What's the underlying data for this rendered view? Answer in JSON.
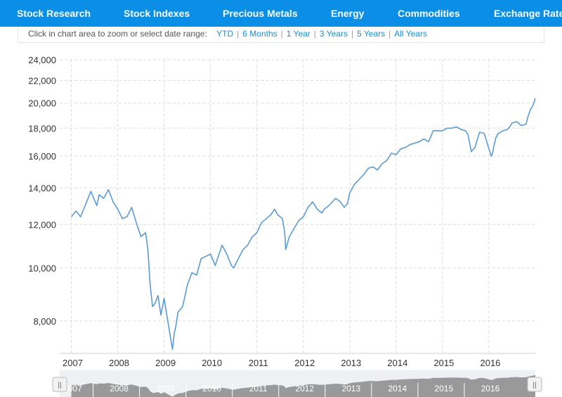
{
  "nav": {
    "items": [
      {
        "label": "Stock Research"
      },
      {
        "label": "Stock Indexes"
      },
      {
        "label": "Precious Metals"
      },
      {
        "label": "Energy"
      },
      {
        "label": "Commodities"
      },
      {
        "label": "Exchange Rates"
      }
    ]
  },
  "range_selector": {
    "prompt": "Click in chart area to zoom or select date range:",
    "options": [
      "YTD",
      "6 Months",
      "1 Year",
      "3 Years",
      "5 Years",
      "All Years"
    ]
  },
  "colors": {
    "nav_background": "#0a8ee6",
    "line": "#5b9bd5",
    "link": "#1a8fd8",
    "navigator_fill": "#999999"
  },
  "chart_data": {
    "type": "line",
    "scale": "log",
    "ylim": [
      7000,
      24000
    ],
    "yticks": [
      8000,
      10000,
      12000,
      14000,
      16000,
      18000,
      20000,
      22000,
      24000
    ],
    "ytick_labels": [
      "8,000",
      "10,000",
      "12,000",
      "14,000",
      "16,000",
      "18,000",
      "20,000",
      "22,000",
      "24,000"
    ],
    "xlim": [
      2006.75,
      2017.0
    ],
    "xticks": [
      2007,
      2008,
      2009,
      2010,
      2011,
      2012,
      2013,
      2014,
      2015,
      2016
    ],
    "xtick_labels": [
      "2007",
      "2008",
      "2009",
      "2010",
      "2011",
      "2012",
      "2013",
      "2014",
      "2015",
      "2016"
    ],
    "grid": true,
    "series": [
      {
        "x": [
          2007.0,
          2007.1,
          2007.2,
          2007.3,
          2007.42,
          2007.5,
          2007.55,
          2007.6,
          2007.7,
          2007.8,
          2007.9,
          2008.0,
          2008.1,
          2008.2,
          2008.3,
          2008.4,
          2008.5,
          2008.6,
          2008.65,
          2008.7,
          2008.75,
          2008.8,
          2008.87,
          2008.93,
          2009.0,
          2009.1,
          2009.18,
          2009.22,
          2009.25,
          2009.3,
          2009.4,
          2009.5,
          2009.6,
          2009.7,
          2009.8,
          2009.9,
          2010.0,
          2010.1,
          2010.25,
          2010.35,
          2010.45,
          2010.5,
          2010.6,
          2010.7,
          2010.8,
          2010.9,
          2011.0,
          2011.1,
          2011.2,
          2011.3,
          2011.38,
          2011.45,
          2011.55,
          2011.6,
          2011.62,
          2011.7,
          2011.8,
          2011.9,
          2012.0,
          2012.1,
          2012.2,
          2012.3,
          2012.4,
          2012.45,
          2012.55,
          2012.7,
          2012.8,
          2012.88,
          2012.95,
          2013.0,
          2013.1,
          2013.2,
          2013.3,
          2013.4,
          2013.5,
          2013.6,
          2013.7,
          2013.8,
          2013.9,
          2014.0,
          2014.1,
          2014.2,
          2014.3,
          2014.4,
          2014.5,
          2014.6,
          2014.7,
          2014.8,
          2014.9,
          2015.0,
          2015.1,
          2015.2,
          2015.3,
          2015.4,
          2015.5,
          2015.55,
          2015.62,
          2015.7,
          2015.8,
          2015.9,
          2016.0,
          2016.05,
          2016.08,
          2016.1,
          2016.15,
          2016.2,
          2016.3,
          2016.4,
          2016.45,
          2016.5,
          2016.6,
          2016.7,
          2016.8,
          2016.85,
          2016.9,
          2016.95,
          2017.0
        ],
        "y": [
          12400,
          12700,
          12400,
          13000,
          13800,
          13300,
          13000,
          13600,
          13400,
          13900,
          13200,
          12800,
          12300,
          12400,
          12900,
          12100,
          11400,
          11600,
          10800,
          9300,
          8500,
          8600,
          8900,
          8200,
          8800,
          7800,
          7100,
          7600,
          7800,
          8300,
          8500,
          9300,
          9800,
          9700,
          10400,
          10500,
          10600,
          10100,
          11000,
          10600,
          10100,
          10000,
          10400,
          10800,
          11000,
          11400,
          11600,
          12100,
          12300,
          12500,
          12800,
          12500,
          12300,
          11600,
          10800,
          11400,
          11800,
          12200,
          12400,
          12900,
          13200,
          12800,
          12600,
          12800,
          13000,
          13400,
          13200,
          12900,
          13100,
          13700,
          14200,
          14500,
          14800,
          15200,
          15300,
          15100,
          15500,
          15700,
          16200,
          16100,
          16500,
          16600,
          16800,
          16900,
          17000,
          17200,
          17000,
          17800,
          17800,
          17800,
          18000,
          18000,
          18100,
          17900,
          17800,
          17500,
          16300,
          16600,
          17700,
          17600,
          16500,
          16000,
          16200,
          16600,
          17300,
          17600,
          17800,
          17900,
          18100,
          18400,
          18500,
          18200,
          18300,
          19000,
          19500,
          19800,
          20400
        ]
      }
    ]
  }
}
